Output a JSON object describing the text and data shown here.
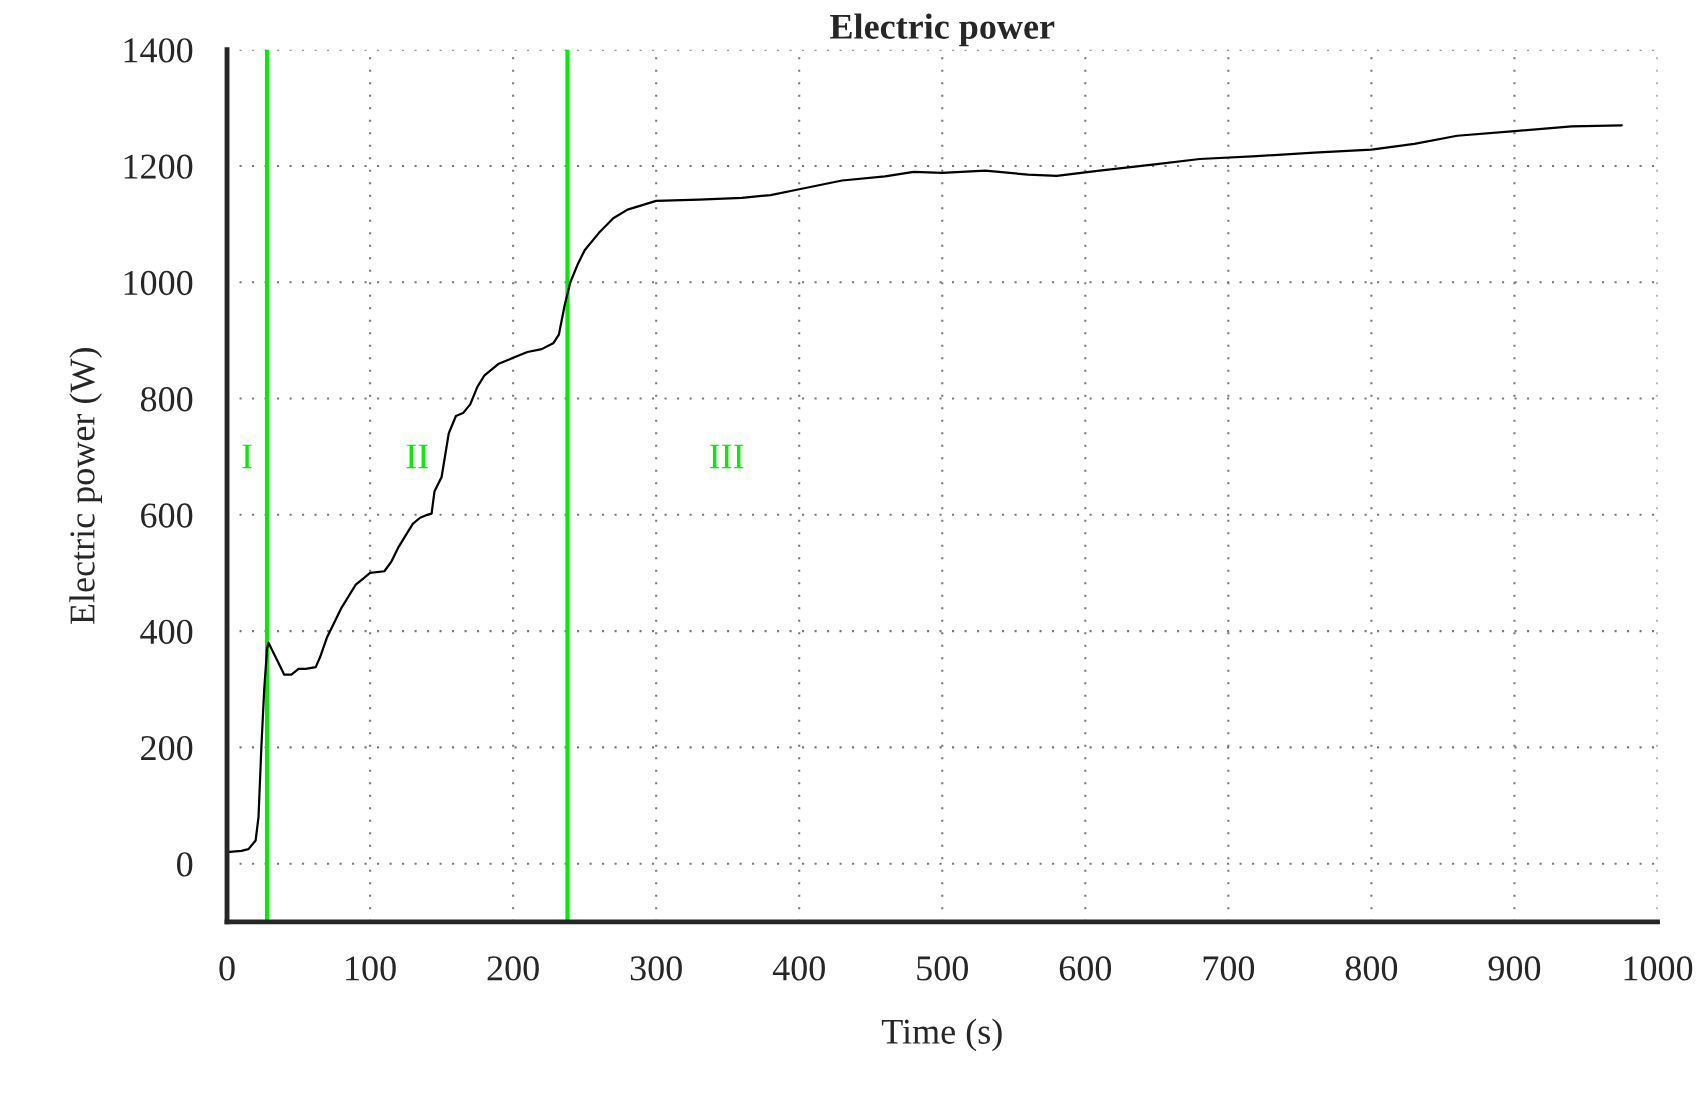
{
  "chart_data": {
    "type": "line",
    "title": "Electric power",
    "xlabel": "Time (s)",
    "ylabel": "Electric power (W)",
    "xlim": [
      0,
      1000
    ],
    "ylim": [
      -100,
      1400
    ],
    "xticks": [
      0,
      100,
      200,
      300,
      400,
      500,
      600,
      700,
      800,
      900,
      1000
    ],
    "yticks": [
      0,
      200,
      400,
      600,
      800,
      1000,
      1200,
      1400
    ],
    "grid": true,
    "marker": "none",
    "line_style": "solid",
    "series": [
      {
        "color": "#000000",
        "x": [
          0,
          10,
          15,
          20,
          22,
          24,
          26,
          28,
          29,
          32,
          36,
          40,
          45,
          50,
          55,
          62,
          65,
          70,
          75,
          80,
          85,
          90,
          95,
          100,
          110,
          115,
          120,
          125,
          130,
          135,
          140,
          143,
          145,
          150,
          155,
          160,
          165,
          170,
          175,
          180,
          190,
          200,
          210,
          220,
          228,
          232,
          236,
          240,
          245,
          250,
          260,
          270,
          280,
          300,
          330,
          360,
          380,
          400,
          430,
          460,
          480,
          500,
          530,
          560,
          580,
          610,
          650,
          680,
          720,
          760,
          800,
          830,
          860,
          900,
          940,
          975
        ],
        "values": [
          20,
          22,
          25,
          40,
          80,
          200,
          300,
          370,
          380,
          365,
          345,
          325,
          325,
          335,
          335,
          338,
          355,
          390,
          415,
          440,
          460,
          480,
          490,
          500,
          503,
          520,
          545,
          565,
          585,
          595,
          600,
          602,
          640,
          665,
          740,
          770,
          775,
          790,
          820,
          840,
          860,
          870,
          880,
          885,
          895,
          910,
          960,
          1000,
          1030,
          1055,
          1085,
          1110,
          1125,
          1140,
          1142,
          1145,
          1150,
          1160,
          1175,
          1182,
          1190,
          1188,
          1192,
          1185,
          1183,
          1192,
          1203,
          1212,
          1217,
          1223,
          1228,
          1238,
          1252,
          1260,
          1268,
          1270
        ]
      }
    ],
    "ref_lines": [
      {
        "axis": "x",
        "value": 28,
        "color": "#00ee00",
        "line_style": "solid"
      },
      {
        "axis": "x",
        "value": 238,
        "color": "#00ee00",
        "line_style": "solid"
      }
    ],
    "annotations": [
      "I",
      "II",
      "III"
    ]
  }
}
